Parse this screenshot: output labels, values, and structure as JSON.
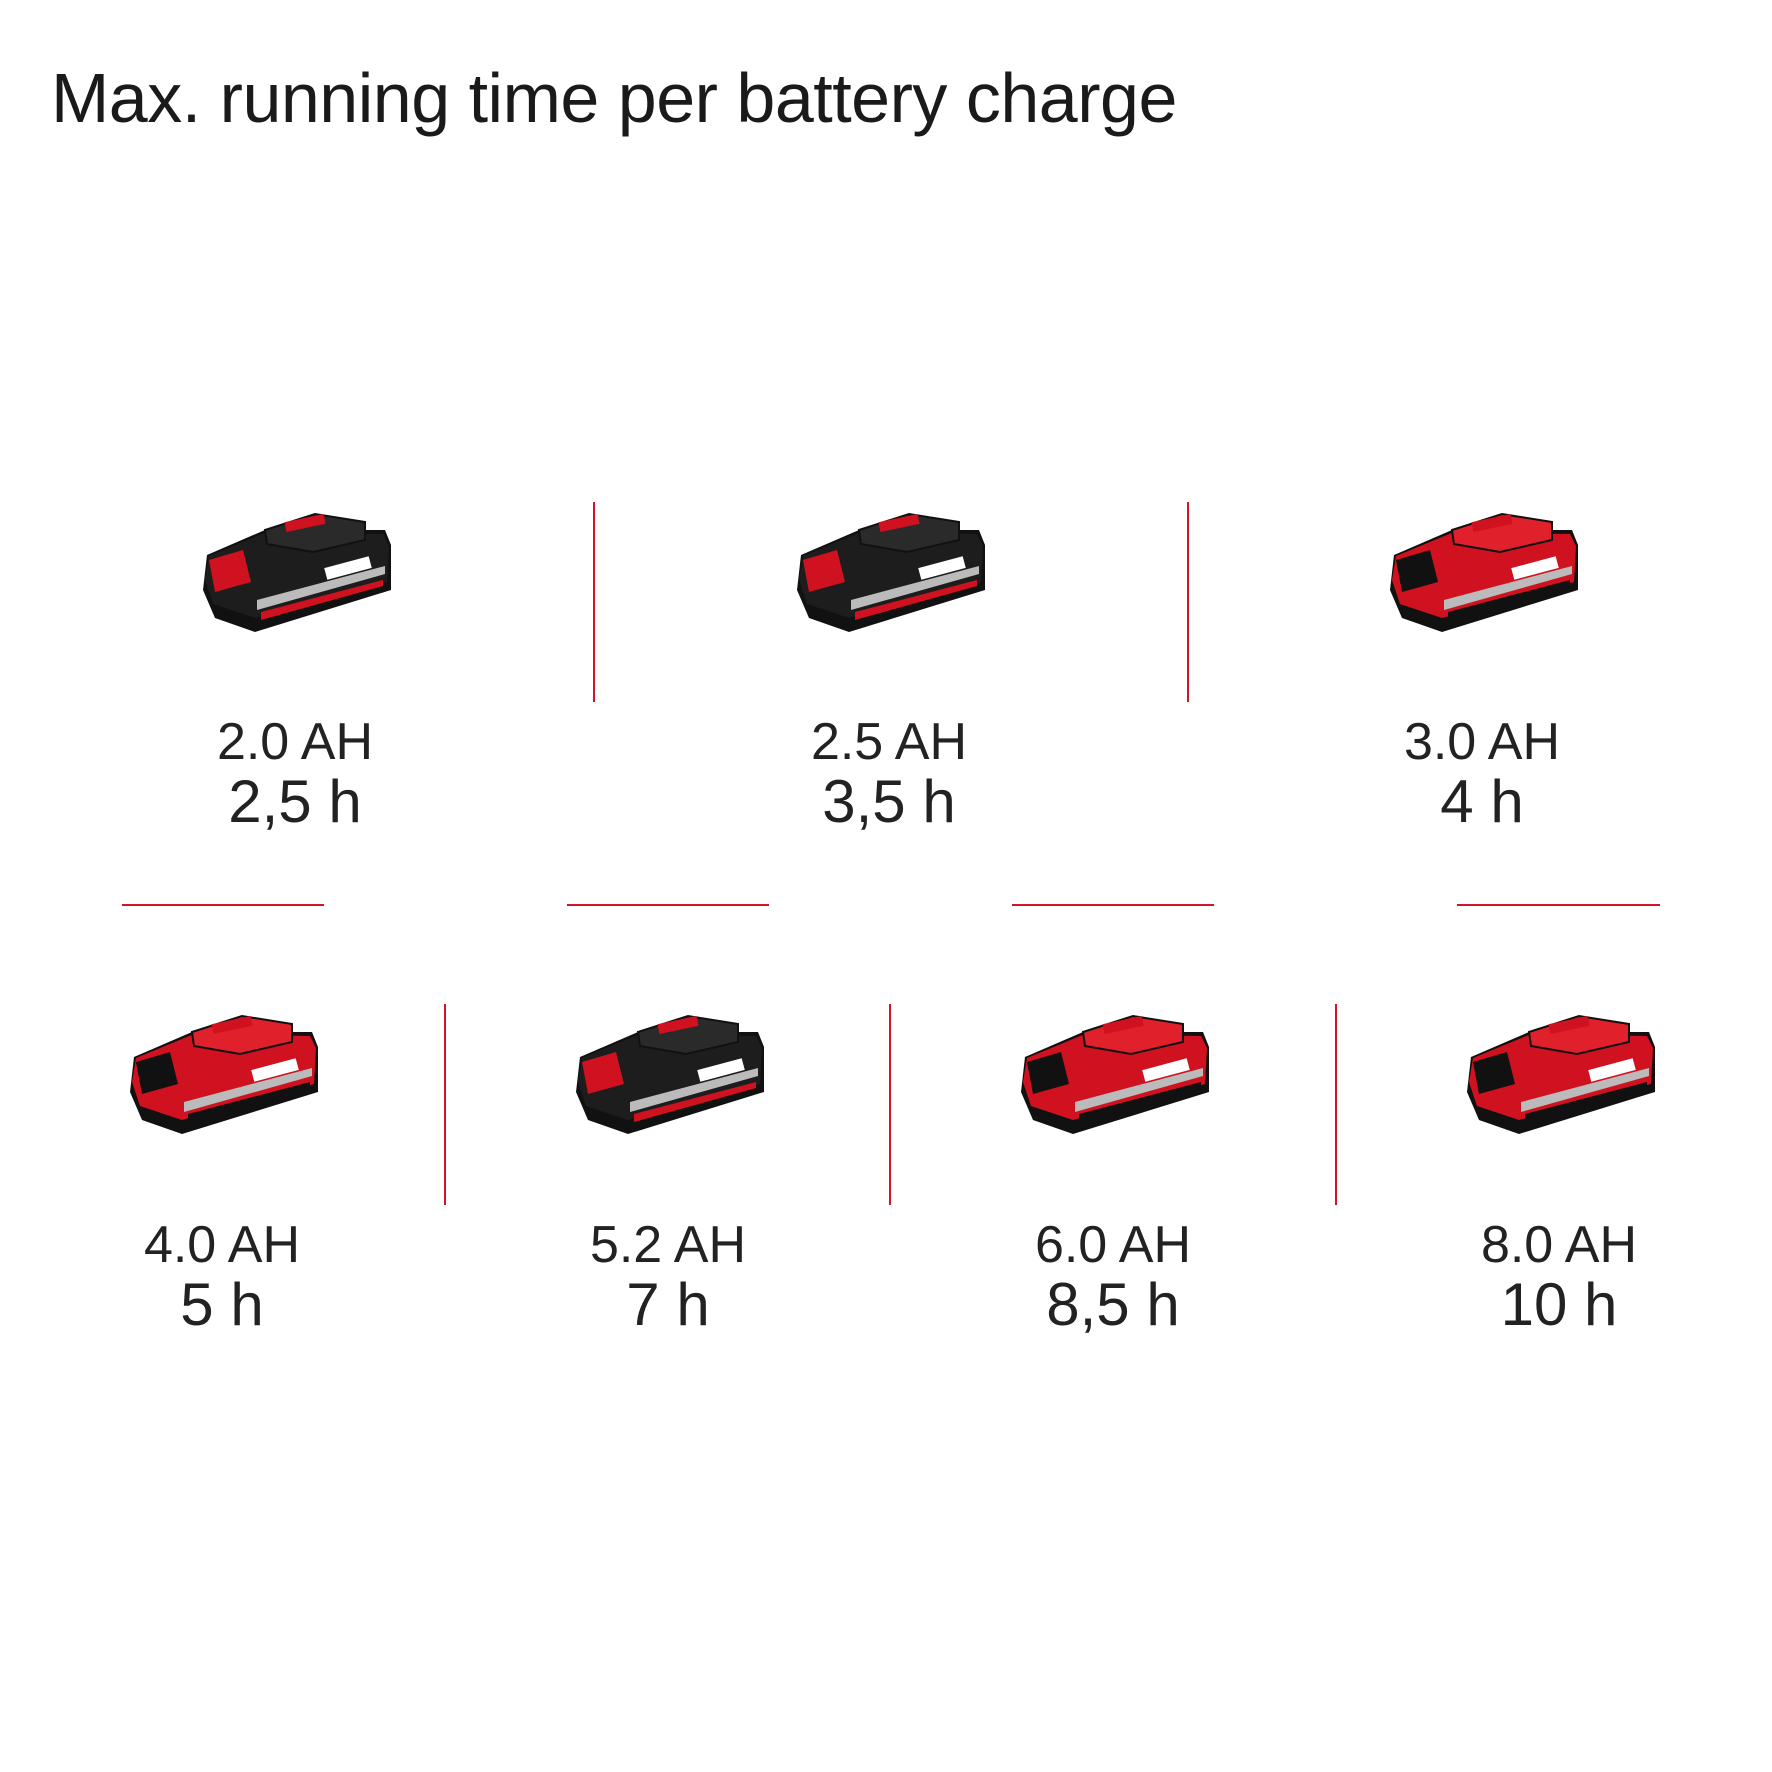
{
  "title": "Max. running time per battery charge",
  "accent_color": "#d3132a",
  "batteries": [
    {
      "capacity": "2.0 AH",
      "time": "2,5 h",
      "body_color": "black",
      "icon": "battery-pack-icon"
    },
    {
      "capacity": "2.5 AH",
      "time": "3,5 h",
      "body_color": "black",
      "icon": "battery-pack-icon"
    },
    {
      "capacity": "3.0 AH",
      "time": "4 h",
      "body_color": "red",
      "icon": "battery-pack-icon"
    },
    {
      "capacity": "4.0 AH",
      "time": "5 h",
      "body_color": "red",
      "icon": "battery-pack-icon"
    },
    {
      "capacity": "5.2 AH",
      "time": "7 h",
      "body_color": "black",
      "icon": "battery-pack-icon"
    },
    {
      "capacity": "6.0 AH",
      "time": "8,5 h",
      "body_color": "red",
      "icon": "battery-pack-icon"
    },
    {
      "capacity": "8.0 AH",
      "time": "10 h",
      "body_color": "red",
      "icon": "battery-pack-icon"
    }
  ]
}
